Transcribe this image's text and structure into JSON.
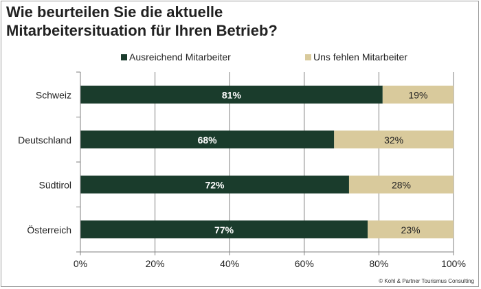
{
  "title_lines": [
    "Wie beurteilen Sie die aktuelle",
    "Mitarbeitersituation für Ihren Betrieb?"
  ],
  "credit": "© Kohl & Partner Tourismus Consulting",
  "colors": {
    "ausreichend": "#1a3c2c",
    "fehlen": "#d9ca9c",
    "grid": "#7f7f7f",
    "label_light": "#ffffff",
    "label_dark": "#222222"
  },
  "chart_data": {
    "type": "bar",
    "orientation": "horizontal",
    "stacked": true,
    "percent_stacked": true,
    "title": "Wie beurteilen Sie die aktuelle Mitarbeitersituation für Ihren Betrieb?",
    "categories": [
      "Schweiz",
      "Deutschland",
      "Südtirol",
      "Österreich"
    ],
    "series": [
      {
        "name": "Ausreichend Mitarbeiter",
        "values": [
          81,
          68,
          72,
          77
        ],
        "labels": [
          "81%",
          "68%",
          "72%",
          "77%"
        ]
      },
      {
        "name": "Uns fehlen Mitarbeiter",
        "values": [
          19,
          32,
          28,
          23
        ],
        "labels": [
          "19%",
          "32%",
          "28%",
          "23%"
        ]
      }
    ],
    "xlim": [
      0,
      100
    ],
    "xticks": [
      0,
      20,
      40,
      60,
      80,
      100
    ],
    "xtick_labels": [
      "0%",
      "20%",
      "40%",
      "60%",
      "80%",
      "100%"
    ],
    "grid": true,
    "legend_position": "top"
  }
}
